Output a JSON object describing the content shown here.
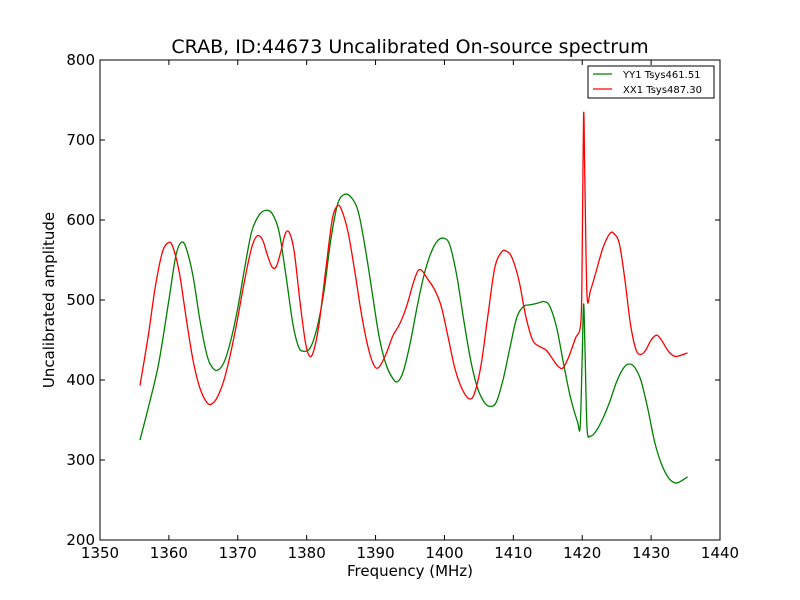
{
  "chart_data": {
    "type": "line",
    "title": "CRAB, ID:44673 Uncalibrated On-source spectrum",
    "xlabel": "Frequency (MHz)",
    "ylabel": "Uncalibrated amplitude",
    "xlim": [
      1350,
      1440
    ],
    "ylim": [
      200,
      800
    ],
    "xticks": [
      "1350",
      "1360",
      "1370",
      "1380",
      "1390",
      "1400",
      "1410",
      "1420",
      "1430",
      "1440"
    ],
    "yticks": [
      "200",
      "300",
      "400",
      "500",
      "600",
      "700",
      "800"
    ],
    "legend_position": "top-right",
    "series": [
      {
        "name": "YY1 Tsys461.51",
        "color": "#008000",
        "points": [
          [
            1355.8,
            325
          ],
          [
            1357.0,
            365
          ],
          [
            1358.5,
            420
          ],
          [
            1360.0,
            500
          ],
          [
            1361.0,
            555
          ],
          [
            1361.8,
            572
          ],
          [
            1362.5,
            565
          ],
          [
            1363.5,
            530
          ],
          [
            1364.5,
            475
          ],
          [
            1365.5,
            432
          ],
          [
            1366.2,
            417
          ],
          [
            1367.0,
            412
          ],
          [
            1368.0,
            422
          ],
          [
            1369.0,
            450
          ],
          [
            1370.0,
            490
          ],
          [
            1371.0,
            540
          ],
          [
            1372.0,
            585
          ],
          [
            1373.0,
            605
          ],
          [
            1374.0,
            612
          ],
          [
            1375.0,
            608
          ],
          [
            1376.0,
            585
          ],
          [
            1377.0,
            530
          ],
          [
            1378.0,
            470
          ],
          [
            1378.8,
            442
          ],
          [
            1379.5,
            436
          ],
          [
            1380.5,
            440
          ],
          [
            1381.5,
            465
          ],
          [
            1382.5,
            510
          ],
          [
            1383.5,
            575
          ],
          [
            1384.5,
            620
          ],
          [
            1385.5,
            632
          ],
          [
            1386.5,
            628
          ],
          [
            1387.5,
            610
          ],
          [
            1388.5,
            565
          ],
          [
            1389.5,
            510
          ],
          [
            1390.5,
            455
          ],
          [
            1391.5,
            420
          ],
          [
            1392.5,
            402
          ],
          [
            1393.2,
            398
          ],
          [
            1394.0,
            410
          ],
          [
            1395.0,
            445
          ],
          [
            1396.0,
            490
          ],
          [
            1397.0,
            530
          ],
          [
            1398.0,
            558
          ],
          [
            1399.0,
            574
          ],
          [
            1400.0,
            577
          ],
          [
            1400.8,
            568
          ],
          [
            1401.8,
            530
          ],
          [
            1402.8,
            475
          ],
          [
            1403.8,
            425
          ],
          [
            1404.8,
            390
          ],
          [
            1405.8,
            372
          ],
          [
            1406.6,
            367
          ],
          [
            1407.5,
            372
          ],
          [
            1408.5,
            400
          ],
          [
            1409.5,
            440
          ],
          [
            1410.5,
            478
          ],
          [
            1411.5,
            492
          ],
          [
            1412.5,
            494
          ],
          [
            1413.5,
            496
          ],
          [
            1414.5,
            498
          ],
          [
            1415.3,
            492
          ],
          [
            1416.3,
            465
          ],
          [
            1417.3,
            420
          ],
          [
            1418.3,
            378
          ],
          [
            1419.3,
            348
          ],
          [
            1419.7,
            342
          ],
          [
            1420.0,
            430
          ],
          [
            1420.2,
            495
          ],
          [
            1420.4,
            440
          ],
          [
            1420.7,
            340
          ],
          [
            1421.2,
            330
          ],
          [
            1422.0,
            336
          ],
          [
            1423.0,
            352
          ],
          [
            1424.0,
            373
          ],
          [
            1425.0,
            398
          ],
          [
            1426.0,
            415
          ],
          [
            1426.8,
            420
          ],
          [
            1427.6,
            416
          ],
          [
            1428.5,
            400
          ],
          [
            1429.5,
            365
          ],
          [
            1430.5,
            323
          ],
          [
            1431.5,
            295
          ],
          [
            1432.5,
            278
          ],
          [
            1433.3,
            272
          ],
          [
            1434.0,
            272
          ],
          [
            1435.3,
            279
          ]
        ]
      },
      {
        "name": "XX1 Tsys487.30",
        "color": "#ff0000",
        "points": [
          [
            1355.8,
            393
          ],
          [
            1357.0,
            455
          ],
          [
            1358.0,
            515
          ],
          [
            1359.0,
            558
          ],
          [
            1359.8,
            571
          ],
          [
            1360.5,
            568
          ],
          [
            1361.5,
            535
          ],
          [
            1362.5,
            478
          ],
          [
            1363.5,
            425
          ],
          [
            1364.5,
            390
          ],
          [
            1365.5,
            372
          ],
          [
            1366.2,
            370
          ],
          [
            1367.0,
            378
          ],
          [
            1368.0,
            400
          ],
          [
            1369.0,
            435
          ],
          [
            1370.0,
            478
          ],
          [
            1371.0,
            525
          ],
          [
            1372.0,
            565
          ],
          [
            1372.8,
            580
          ],
          [
            1373.6,
            575
          ],
          [
            1374.3,
            556
          ],
          [
            1375.0,
            541
          ],
          [
            1375.6,
            542
          ],
          [
            1376.3,
            562
          ],
          [
            1376.9,
            583
          ],
          [
            1377.5,
            584
          ],
          [
            1378.2,
            560
          ],
          [
            1379.0,
            500
          ],
          [
            1379.8,
            448
          ],
          [
            1380.4,
            430
          ],
          [
            1381.0,
            436
          ],
          [
            1381.8,
            470
          ],
          [
            1382.8,
            540
          ],
          [
            1383.7,
            600
          ],
          [
            1384.4,
            617
          ],
          [
            1385.0,
            614
          ],
          [
            1386.0,
            585
          ],
          [
            1387.0,
            535
          ],
          [
            1388.0,
            480
          ],
          [
            1389.0,
            438
          ],
          [
            1389.8,
            418
          ],
          [
            1390.5,
            416
          ],
          [
            1391.5,
            432
          ],
          [
            1392.5,
            455
          ],
          [
            1393.5,
            470
          ],
          [
            1394.5,
            492
          ],
          [
            1395.5,
            522
          ],
          [
            1396.2,
            537
          ],
          [
            1396.8,
            536
          ],
          [
            1397.5,
            527
          ],
          [
            1398.5,
            514
          ],
          [
            1399.5,
            493
          ],
          [
            1400.5,
            455
          ],
          [
            1401.5,
            415
          ],
          [
            1402.5,
            390
          ],
          [
            1403.5,
            377
          ],
          [
            1404.3,
            382
          ],
          [
            1405.3,
            418
          ],
          [
            1406.3,
            480
          ],
          [
            1407.3,
            540
          ],
          [
            1408.3,
            560
          ],
          [
            1409.0,
            561
          ],
          [
            1409.8,
            553
          ],
          [
            1410.8,
            525
          ],
          [
            1411.8,
            480
          ],
          [
            1412.8,
            450
          ],
          [
            1413.8,
            442
          ],
          [
            1414.8,
            437
          ],
          [
            1415.8,
            425
          ],
          [
            1416.5,
            417
          ],
          [
            1417.2,
            415
          ],
          [
            1418.0,
            428
          ],
          [
            1419.0,
            452
          ],
          [
            1419.8,
            472
          ],
          [
            1420.0,
            560
          ],
          [
            1420.2,
            733
          ],
          [
            1420.4,
            640
          ],
          [
            1420.7,
            505
          ],
          [
            1421.2,
            512
          ],
          [
            1422.0,
            535
          ],
          [
            1423.0,
            565
          ],
          [
            1424.0,
            583
          ],
          [
            1424.6,
            583
          ],
          [
            1425.4,
            570
          ],
          [
            1426.2,
            525
          ],
          [
            1427.0,
            470
          ],
          [
            1427.8,
            438
          ],
          [
            1428.5,
            432
          ],
          [
            1429.2,
            437
          ],
          [
            1430.0,
            450
          ],
          [
            1430.8,
            456
          ],
          [
            1431.5,
            450
          ],
          [
            1432.5,
            436
          ],
          [
            1433.3,
            430
          ],
          [
            1434.0,
            430
          ],
          [
            1435.3,
            434
          ]
        ]
      }
    ]
  }
}
